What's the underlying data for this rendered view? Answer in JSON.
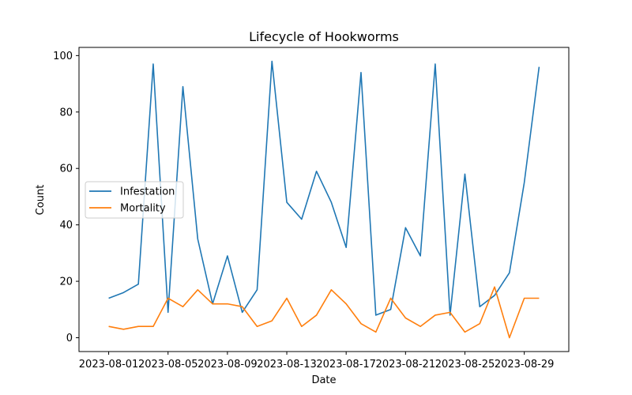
{
  "chart_data": {
    "type": "line",
    "title": "Lifecycle of Hookworms",
    "xlabel": "Date",
    "ylabel": "Count",
    "x": [
      "2023-08-01",
      "2023-08-02",
      "2023-08-03",
      "2023-08-04",
      "2023-08-05",
      "2023-08-06",
      "2023-08-07",
      "2023-08-08",
      "2023-08-09",
      "2023-08-10",
      "2023-08-11",
      "2023-08-12",
      "2023-08-13",
      "2023-08-14",
      "2023-08-15",
      "2023-08-16",
      "2023-08-17",
      "2023-08-18",
      "2023-08-19",
      "2023-08-20",
      "2023-08-21",
      "2023-08-22",
      "2023-08-23",
      "2023-08-24",
      "2023-08-25",
      "2023-08-26",
      "2023-08-27",
      "2023-08-28",
      "2023-08-29",
      "2023-08-30"
    ],
    "x_ticks": [
      "2023-08-01",
      "2023-08-05",
      "2023-08-09",
      "2023-08-13",
      "2023-08-17",
      "2023-08-21",
      "2023-08-25",
      "2023-08-29"
    ],
    "y_ticks": [
      0,
      20,
      40,
      60,
      80,
      100
    ],
    "ylim": [
      -4.9,
      102.9
    ],
    "xlim": [
      "2023-07-30",
      "2023-09-01"
    ],
    "legend_position": "center-left",
    "grid": false,
    "series": [
      {
        "name": "Infestation",
        "color": "#1f77b4",
        "values": [
          14,
          16,
          19,
          97,
          9,
          89,
          35,
          12,
          29,
          9,
          17,
          98,
          48,
          42,
          59,
          48,
          32,
          94,
          8,
          10,
          39,
          29,
          97,
          8,
          58,
          11,
          15,
          23,
          55,
          96
        ]
      },
      {
        "name": "Mortality",
        "color": "#ff7f0e",
        "values": [
          4,
          3,
          4,
          4,
          14,
          11,
          17,
          12,
          12,
          11,
          4,
          6,
          14,
          4,
          8,
          17,
          12,
          5,
          2,
          14,
          7,
          4,
          8,
          9,
          2,
          5,
          18,
          0,
          14,
          14
        ]
      }
    ]
  }
}
